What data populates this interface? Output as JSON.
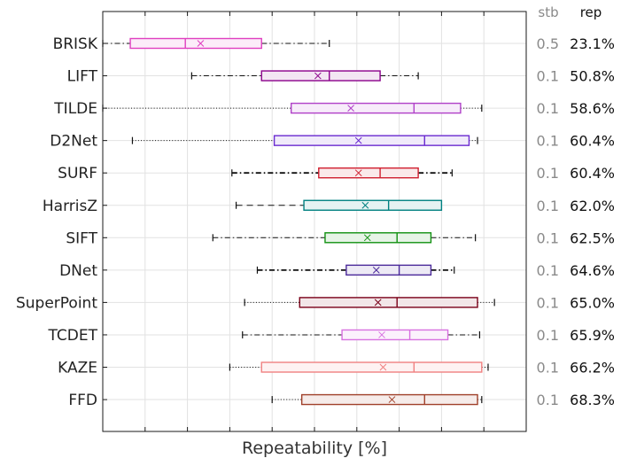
{
  "chart_data": {
    "type": "boxplot",
    "title": "",
    "xlabel": "Repeatability [%]",
    "ylabel": "",
    "xlim": [
      0,
      100
    ],
    "grid": true,
    "column_headers": {
      "stb": "stb",
      "rep": "rep"
    },
    "series": [
      {
        "name": "BRISK",
        "color": "#e040c0",
        "whisker_style": "dashdot",
        "whisker_low": 0,
        "q1": 6.5,
        "median": 19.5,
        "mean": 23.1,
        "q3": 37.5,
        "whisker_high": 53.5,
        "stb": "0.5",
        "rep": "23.1%"
      },
      {
        "name": "LIFT",
        "color": "#8b008b",
        "whisker_style": "dashdot",
        "whisker_low": 21,
        "q1": 37.5,
        "median": 53.5,
        "mean": 50.8,
        "q3": 65.5,
        "whisker_high": 74.5,
        "stb": "0.1",
        "rep": "50.8%"
      },
      {
        "name": "TILDE",
        "color": "#b040c8",
        "whisker_style": "dotted",
        "whisker_low": 0,
        "q1": 44.5,
        "median": 73.5,
        "mean": 58.6,
        "q3": 84.5,
        "whisker_high": 89.5,
        "stb": "0.1",
        "rep": "58.6%"
      },
      {
        "name": "D2Net",
        "color": "#6a2ad0",
        "whisker_style": "dotted",
        "whisker_low": 7,
        "q1": 40.5,
        "median": 76,
        "mean": 60.4,
        "q3": 86.5,
        "whisker_high": 88.5,
        "stb": "0.1",
        "rep": "60.4%"
      },
      {
        "name": "SURF",
        "color": "#d02030",
        "whisker_style": "dashdot_bold",
        "whisker_low": 30.5,
        "q1": 51,
        "median": 65.5,
        "mean": 60.4,
        "q3": 74.5,
        "whisker_high": 82.5,
        "stb": "0.1",
        "rep": "60.4%"
      },
      {
        "name": "HarrisZ",
        "color": "#008080",
        "whisker_style": "dashed",
        "whisker_low": 31.5,
        "q1": 47.5,
        "median": 67.5,
        "mean": 62.0,
        "q3": 80,
        "whisker_high": 80,
        "stb": "0.1",
        "rep": "62.0%"
      },
      {
        "name": "SIFT",
        "color": "#109010",
        "whisker_style": "dashdot",
        "whisker_low": 26,
        "q1": 52.5,
        "median": 69.5,
        "mean": 62.5,
        "q3": 77.5,
        "whisker_high": 88,
        "stb": "0.1",
        "rep": "62.5%"
      },
      {
        "name": "DNet",
        "color": "#4b2a9a",
        "whisker_style": "dashdot_bold",
        "whisker_low": 36.5,
        "q1": 57.5,
        "median": 70,
        "mean": 64.6,
        "q3": 77.5,
        "whisker_high": 83,
        "stb": "0.1",
        "rep": "64.6%"
      },
      {
        "name": "SuperPoint",
        "color": "#7a0018",
        "whisker_style": "dotted",
        "whisker_low": 33.5,
        "q1": 46.5,
        "median": 69.5,
        "mean": 65.0,
        "q3": 88.5,
        "whisker_high": 92.5,
        "stb": "0.1",
        "rep": "65.0%"
      },
      {
        "name": "TCDET",
        "color": "#d870e0",
        "whisker_style": "dashdot",
        "whisker_low": 33,
        "q1": 56.5,
        "median": 72.5,
        "mean": 65.9,
        "q3": 81.5,
        "whisker_high": 89,
        "stb": "0.1",
        "rep": "65.9%"
      },
      {
        "name": "KAZE",
        "color": "#f08080",
        "whisker_style": "dotted",
        "whisker_low": 30,
        "q1": 37.5,
        "median": 73.5,
        "mean": 66.2,
        "q3": 89.5,
        "whisker_high": 91,
        "stb": "0.1",
        "rep": "66.2%"
      },
      {
        "name": "FFD",
        "color": "#a0402a",
        "whisker_style": "dotted",
        "whisker_low": 40,
        "q1": 47,
        "median": 76,
        "mean": 68.3,
        "q3": 88.5,
        "whisker_high": 89.5,
        "stb": "0.1",
        "rep": "68.3%"
      }
    ]
  }
}
